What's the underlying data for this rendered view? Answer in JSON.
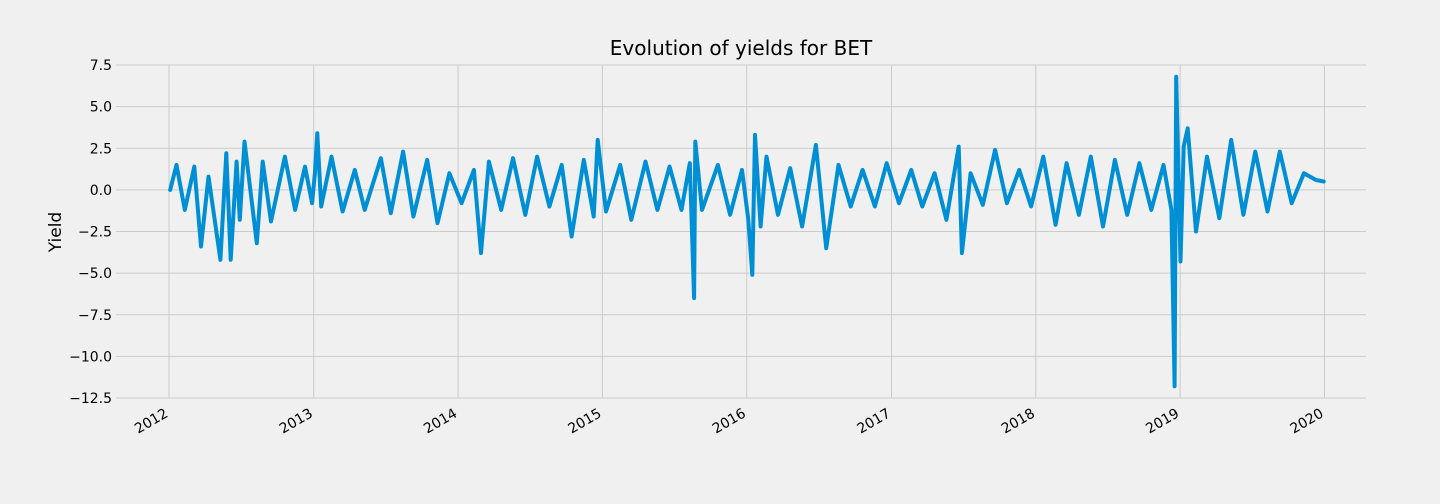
{
  "chart_data": {
    "type": "line",
    "title": "Evolution of yields for BET",
    "xlabel": "",
    "ylabel": "Yield",
    "x_tick_labels": [
      "2012",
      "2013",
      "2014",
      "2015",
      "2016",
      "2017",
      "2018",
      "2019",
      "2020"
    ],
    "y_tick_labels": [
      "7.5",
      "5.0",
      "2.5",
      "0.0",
      "−2.5",
      "−5.0",
      "−7.5",
      "−10.0",
      "−12.5"
    ],
    "ylim": [
      -12.5,
      7.5
    ],
    "xlim": [
      "2011-08-20",
      "2020-04-15"
    ],
    "grid": true,
    "legend": "none",
    "colors": {
      "series": "#008fd5",
      "background": "#f0f0f0",
      "grid": "#cbcbcb"
    },
    "series": [
      {
        "x": [
          "2012-01-04",
          "2012-01-20",
          "2012-02-10",
          "2012-03-05",
          "2012-03-22",
          "2012-04-10",
          "2012-05-10",
          "2012-05-25",
          "2012-06-05",
          "2012-06-20",
          "2012-06-28",
          "2012-07-10",
          "2012-08-10",
          "2012-08-25",
          "2012-09-15",
          "2012-10-20",
          "2012-11-15",
          "2012-12-10",
          "2012-12-28",
          "2013-01-04",
          "2013-01-10",
          "2013-01-20",
          "2013-02-15",
          "2013-03-15",
          "2013-04-15",
          "2013-05-10",
          "2013-06-20",
          "2013-07-15",
          "2013-08-15",
          "2013-09-10",
          "2013-10-15",
          "2013-11-10",
          "2013-12-10",
          "2014-01-10",
          "2014-02-10",
          "2014-02-28",
          "2014-03-20",
          "2014-04-20",
          "2014-05-20",
          "2014-06-20",
          "2014-07-20",
          "2014-08-20",
          "2014-09-20",
          "2014-10-15",
          "2014-11-15",
          "2014-12-10",
          "2014-12-20",
          "2015-01-10",
          "2015-02-15",
          "2015-03-15",
          "2015-04-20",
          "2015-05-20",
          "2015-06-20",
          "2015-07-20",
          "2015-08-10",
          "2015-08-21",
          "2015-08-24",
          "2015-09-10",
          "2015-10-20",
          "2015-11-20",
          "2015-12-20",
          "2016-01-05",
          "2016-01-15",
          "2016-01-22",
          "2016-02-05",
          "2016-02-20",
          "2016-03-20",
          "2016-04-20",
          "2016-05-20",
          "2016-06-24",
          "2016-07-20",
          "2016-08-20",
          "2016-09-20",
          "2016-10-20",
          "2016-11-20",
          "2016-12-20",
          "2017-01-20",
          "2017-02-20",
          "2017-03-20",
          "2017-04-20",
          "2017-05-20",
          "2017-06-20",
          "2017-06-28",
          "2017-07-20",
          "2017-08-20",
          "2017-09-20",
          "2017-10-20",
          "2017-11-20",
          "2017-12-20",
          "2018-01-20",
          "2018-02-20",
          "2018-03-20",
          "2018-04-20",
          "2018-05-20",
          "2018-06-20",
          "2018-07-20",
          "2018-08-20",
          "2018-09-20",
          "2018-10-20",
          "2018-11-20",
          "2018-12-10",
          "2018-12-18",
          "2018-12-22",
          "2019-01-02",
          "2019-01-10",
          "2019-01-20",
          "2019-02-10",
          "2019-03-10",
          "2019-04-10",
          "2019-05-10",
          "2019-06-10",
          "2019-07-10",
          "2019-08-10",
          "2019-09-10",
          "2019-10-10",
          "2019-11-10",
          "2019-12-10",
          "2019-12-30"
        ],
        "values": [
          0.0,
          1.5,
          -1.2,
          1.4,
          -3.4,
          0.8,
          -4.2,
          2.2,
          -4.2,
          1.7,
          -1.8,
          2.9,
          -3.2,
          1.7,
          -1.9,
          2.0,
          -1.2,
          1.4,
          -0.8,
          1.0,
          3.4,
          -1.0,
          2.0,
          -1.3,
          1.2,
          -1.2,
          1.9,
          -1.4,
          2.3,
          -1.6,
          1.8,
          -2.0,
          1.0,
          -0.8,
          1.2,
          -3.8,
          1.7,
          -1.2,
          1.9,
          -1.5,
          2.0,
          -1.0,
          1.5,
          -2.8,
          1.8,
          -1.6,
          3.0,
          -1.3,
          1.5,
          -1.8,
          1.7,
          -1.2,
          1.4,
          -1.2,
          1.6,
          -6.5,
          2.9,
          -1.2,
          1.5,
          -1.5,
          1.2,
          -1.8,
          -5.1,
          3.3,
          -2.2,
          2.0,
          -1.5,
          1.3,
          -2.2,
          2.7,
          -3.5,
          1.5,
          -1.0,
          1.2,
          -1.0,
          1.6,
          -0.8,
          1.2,
          -1.0,
          1.0,
          -1.8,
          2.6,
          -3.8,
          1.0,
          -0.9,
          2.4,
          -0.8,
          1.2,
          -1.0,
          2.0,
          -2.1,
          1.6,
          -1.5,
          2.0,
          -2.2,
          1.8,
          -1.5,
          1.6,
          -1.2,
          1.5,
          -1.2,
          -11.8,
          6.8,
          -4.3,
          2.6,
          3.7,
          -2.5,
          2.0,
          -1.7,
          3.0,
          -1.5,
          2.3,
          -1.3,
          2.3,
          -0.8,
          1.0,
          0.6,
          0.5
        ]
      }
    ]
  }
}
